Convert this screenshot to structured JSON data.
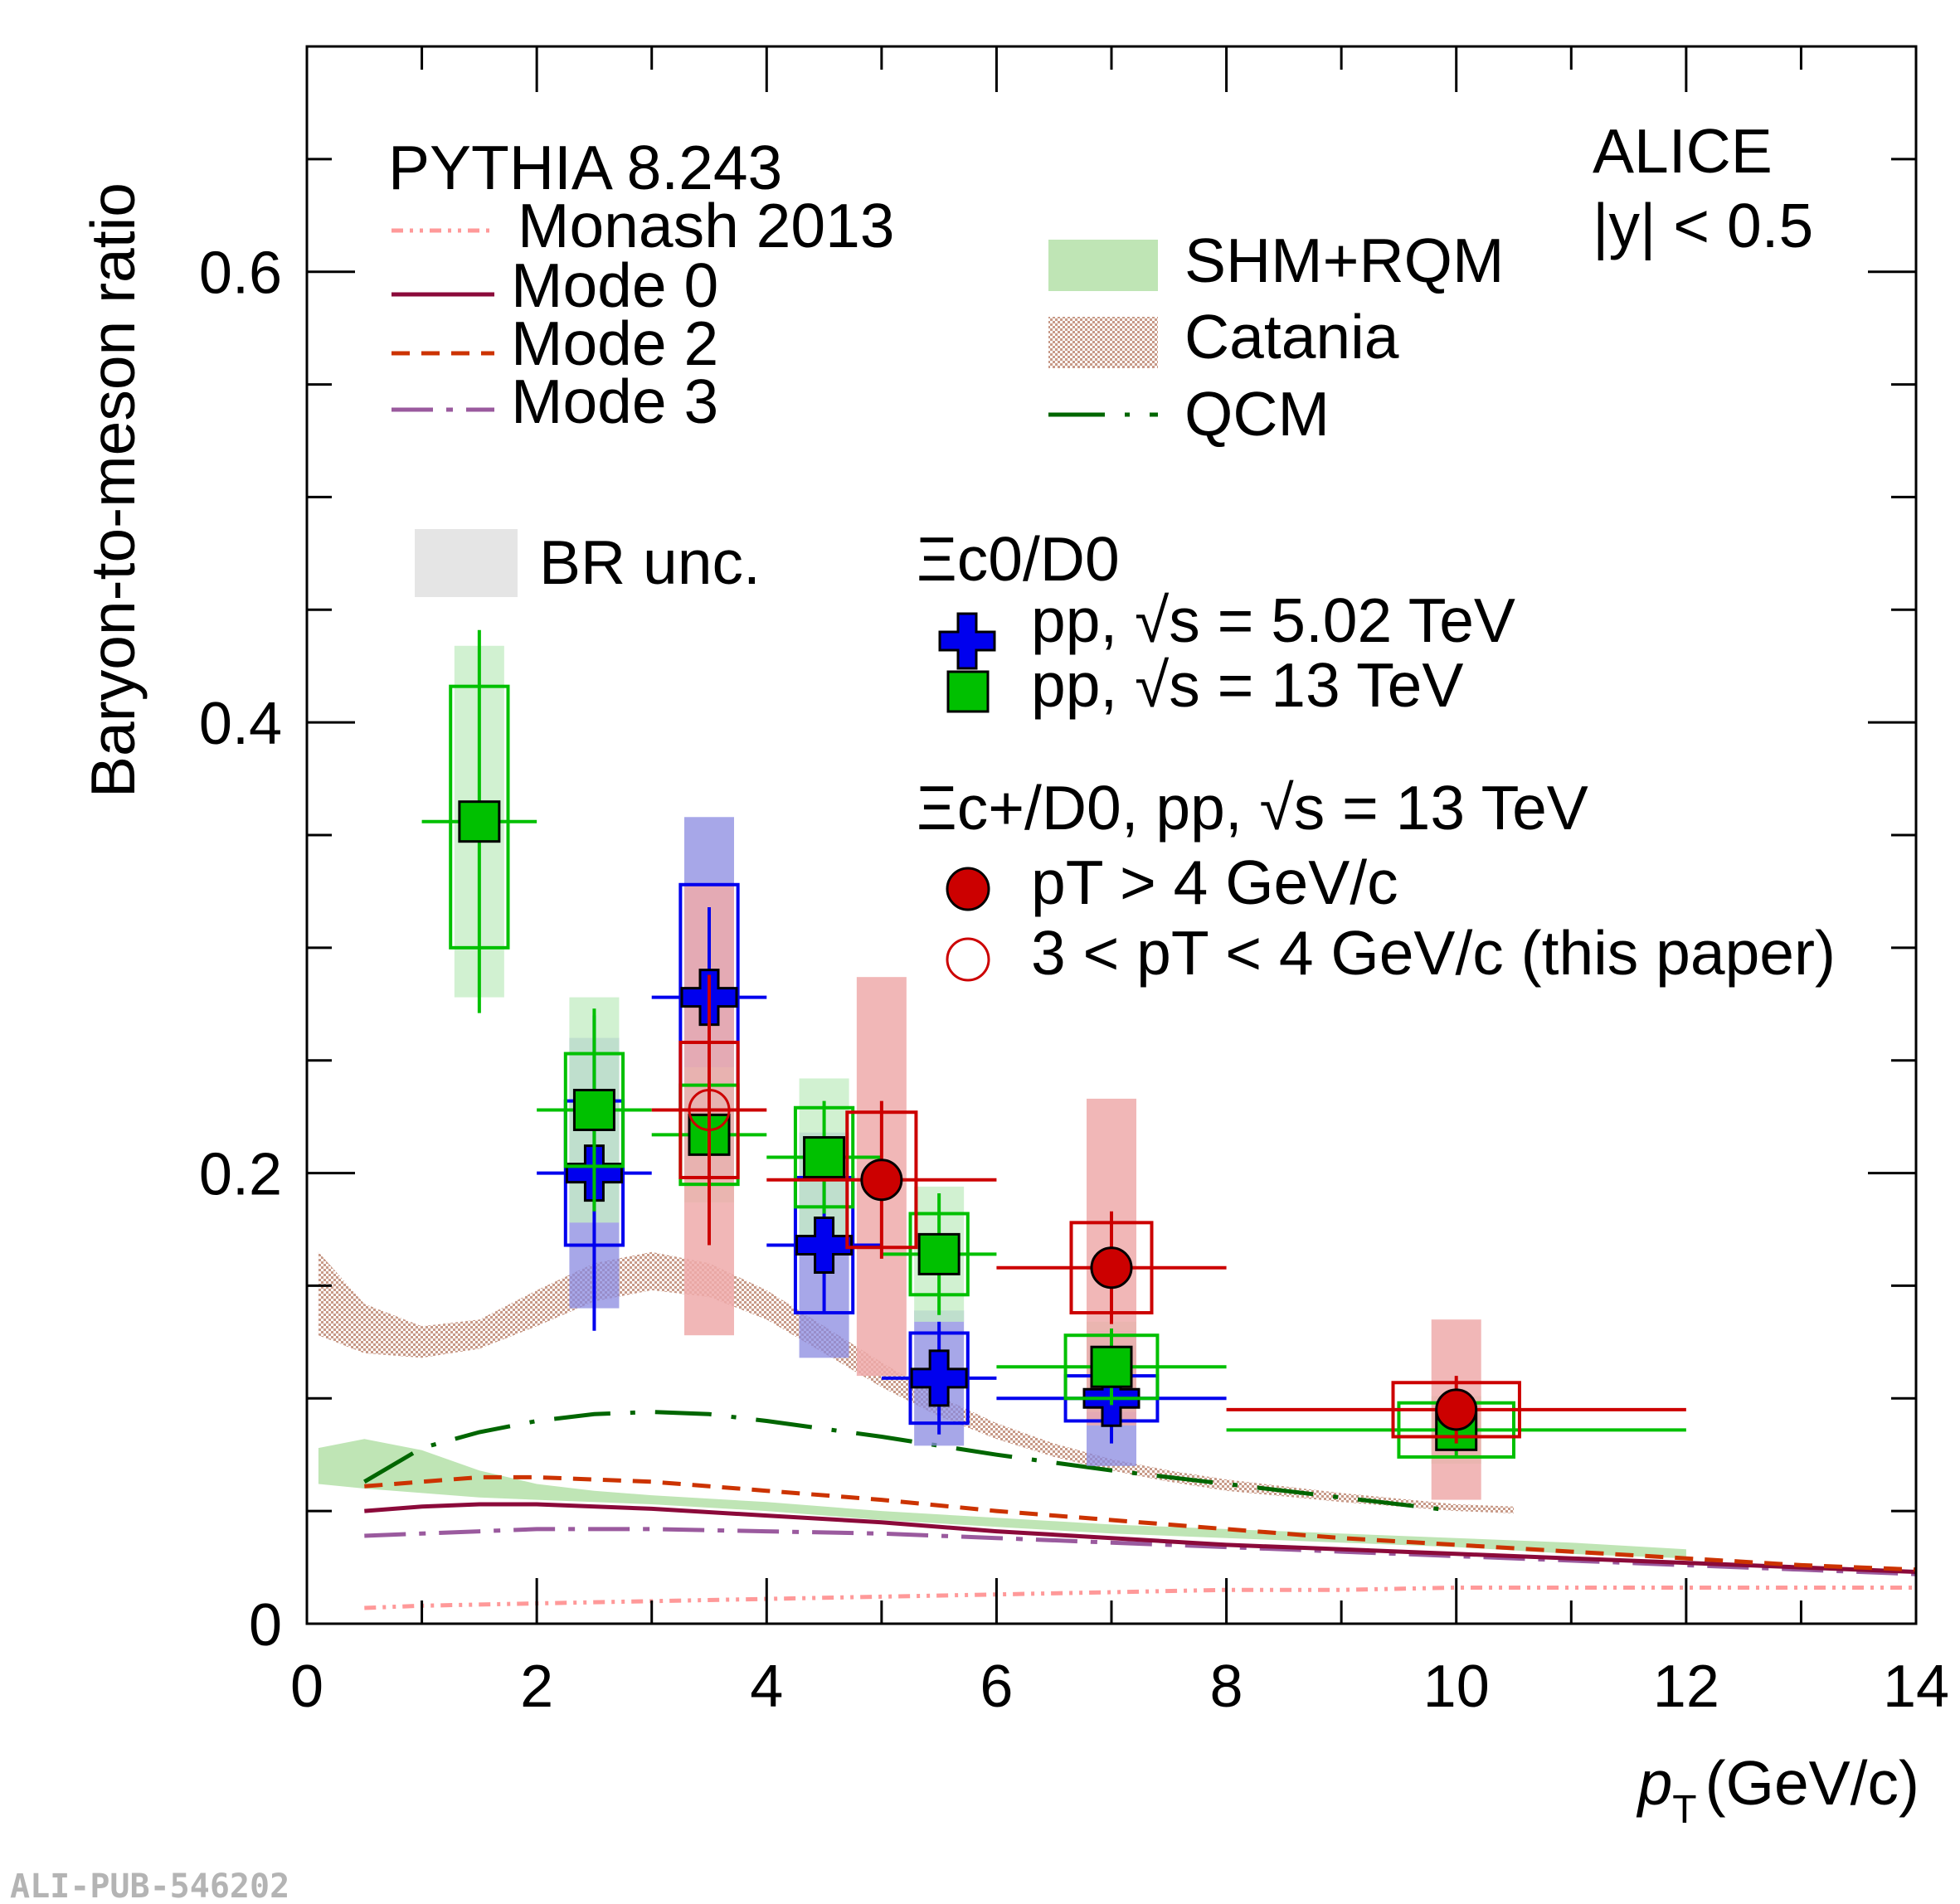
{
  "chart_data": {
    "type": "scatter",
    "xlabel": "p",
    "xlabel_sub": "T",
    "xlabel_unit": "(GeV/c)",
    "ylabel": "Baryon-to-meson ratio",
    "xlim": [
      0,
      14
    ],
    "ylim": [
      0,
      0.7
    ],
    "xticks": [
      0,
      2,
      4,
      6,
      8,
      10,
      12,
      14
    ],
    "xtick_labels": [
      "0",
      "2",
      "4",
      "6",
      "8",
      "10",
      "12",
      "14"
    ],
    "yticks": [
      0,
      0.2,
      0.4,
      0.6
    ],
    "ytick_labels": [
      "0",
      "0.2",
      "0.4",
      "0.6"
    ],
    "experiment": "ALICE",
    "rapidity": "|y| < 0.5",
    "watermark": "ALI-PUB-546202",
    "legend_pythia_title": "PYTHIA 8.243",
    "legend_models": {
      "monash": "Monash 2013",
      "mode0": "Mode 0",
      "mode2": "Mode 2",
      "mode3": "Mode 3",
      "shm": "SHM+RQM",
      "catania": "Catania",
      "qcm": "QCM",
      "br": "BR unc."
    },
    "legend_xic0": {
      "header": "Ξc0/D0",
      "pp502": "pp, √s = 5.02 TeV",
      "pp13": "pp, √s = 13 TeV"
    },
    "legend_xicp": {
      "header": "Ξc+/D0, pp, √s = 13 TeV",
      "high": "pT > 4 GeV/c",
      "low": "3 < pT < 4 GeV/c (this paper)"
    },
    "colors": {
      "blue": "#0000ee",
      "green": "#00c000",
      "red": "#cc0000",
      "mode0": "#8b0a3a",
      "mode2": "#cc3300",
      "mode3": "#9a5a9e",
      "monash": "#ff9999",
      "qcm": "#006600",
      "shm": "#bfe5b5",
      "catania": "#c89a88",
      "br": "#e5e5e5",
      "blue_br": "#8a8ae0",
      "green_br": "#c6eec6",
      "red_br": "#eeaaaa"
    },
    "series": [
      {
        "name": "pp, √s = 5.02 TeV",
        "marker": "cross",
        "color": "blue",
        "points": [
          {
            "x": 2.5,
            "xerr": 0.5,
            "y": 0.2,
            "stat": [
              0.07,
              0.07
            ],
            "syst_w": 0.25,
            "syst": [
              0.032,
              0.032
            ],
            "br": [
              0.06,
              0.06
            ]
          },
          {
            "x": 3.5,
            "xerr": 0.5,
            "y": 0.278,
            "stat": [
              0.04,
              0.04
            ],
            "syst_w": 0.25,
            "syst": [
              0.05,
              0.05
            ],
            "br": [
              0.08,
              0.08
            ]
          },
          {
            "x": 4.5,
            "xerr": 0.5,
            "y": 0.168,
            "stat": [
              0.03,
              0.03
            ],
            "syst_w": 0.25,
            "syst": [
              0.03,
              0.03
            ],
            "br": [
              0.05,
              0.05
            ]
          },
          {
            "x": 5.5,
            "xerr": 0.5,
            "y": 0.109,
            "stat": [
              0.025,
              0.025
            ],
            "syst_w": 0.25,
            "syst": [
              0.02,
              0.02
            ],
            "br": [
              0.03,
              0.03
            ]
          },
          {
            "x": 7.0,
            "xerr": 1.0,
            "y": 0.1,
            "stat": [
              0.02,
              0.02
            ],
            "syst_w": 0.4,
            "syst": [
              0.01,
              0.01
            ],
            "br": [
              0.03,
              0.03
            ]
          }
        ]
      },
      {
        "name": "pp, √s = 13 TeV",
        "marker": "square",
        "color": "green",
        "points": [
          {
            "x": 1.5,
            "xerr": 0.5,
            "y": 0.356,
            "stat": [
              0.085,
              0.085
            ],
            "syst_w": 0.25,
            "syst": [
              0.056,
              0.06
            ],
            "br": [
              0.078,
              0.078
            ]
          },
          {
            "x": 2.5,
            "xerr": 0.5,
            "y": 0.228,
            "stat": [
              0.045,
              0.045
            ],
            "syst_w": 0.25,
            "syst": [
              0.025,
              0.025
            ],
            "br": [
              0.05,
              0.05
            ]
          },
          {
            "x": 3.5,
            "xerr": 0.5,
            "y": 0.217,
            "stat": [
              0.02,
              0.02
            ],
            "syst_w": 0.25,
            "syst": [
              0.022,
              0.022
            ],
            "br": [
              0.03,
              0.03
            ]
          },
          {
            "x": 4.5,
            "xerr": 0.5,
            "y": 0.207,
            "stat": [
              0.025,
              0.025
            ],
            "syst_w": 0.25,
            "syst": [
              0.022,
              0.022
            ],
            "br": [
              0.035,
              0.035
            ]
          },
          {
            "x": 5.5,
            "xerr": 0.5,
            "y": 0.164,
            "stat": [
              0.027,
              0.027
            ],
            "syst_w": 0.25,
            "syst": [
              0.018,
              0.018
            ],
            "br": [
              0.03,
              0.03
            ]
          },
          {
            "x": 7.0,
            "xerr": 1.0,
            "y": 0.114,
            "stat": [
              0.017,
              0.017
            ],
            "syst_w": 0.4,
            "syst": [
              0.014,
              0.014
            ],
            "br": [
              0.02,
              0.02
            ]
          },
          {
            "x": 10.0,
            "xerr": 2.0,
            "y": 0.086,
            "stat": [
              0.012,
              0.012
            ],
            "syst_w": 0.5,
            "syst": [
              0.012,
              0.012
            ],
            "br": [
              0.015,
              0.015
            ]
          }
        ]
      },
      {
        "name": "pT > 4 GeV/c",
        "marker": "circle",
        "color": "red",
        "points": [
          {
            "x": 5.0,
            "xerr": 1.0,
            "y": 0.197,
            "stat": [
              0.035,
              0.035
            ],
            "syst_w": 0.3,
            "syst": [
              0.03,
              0.03
            ],
            "br": [
              0.087,
              0.09
            ]
          },
          {
            "x": 7.0,
            "xerr": 1.0,
            "y": 0.158,
            "stat": [
              0.025,
              0.025
            ],
            "syst_w": 0.35,
            "syst": [
              0.02,
              0.02
            ],
            "br": [
              0.07,
              0.075
            ]
          },
          {
            "x": 10.0,
            "xerr": 2.0,
            "y": 0.095,
            "stat": [
              0.015,
              0.015
            ],
            "syst_w": 0.55,
            "syst": [
              0.012,
              0.012
            ],
            "br": [
              0.04,
              0.04
            ]
          }
        ]
      },
      {
        "name": "3 < pT < 4 GeV/c (this paper)",
        "marker": "open-circle",
        "color": "red",
        "points": [
          {
            "x": 3.5,
            "xerr": 0.5,
            "y": 0.228,
            "stat": [
              0.06,
              0.06
            ],
            "syst_w": 0.25,
            "syst": [
              0.03,
              0.03
            ],
            "br": [
              0.1,
              0.1
            ]
          }
        ]
      }
    ],
    "curves": {
      "shm_band": {
        "x": [
          0.1,
          0.5,
          1.0,
          1.5,
          2,
          2.5,
          3,
          4,
          5,
          6,
          7,
          8,
          9,
          10,
          11,
          12
        ],
        "lo": [
          0.062,
          0.06,
          0.058,
          0.056,
          0.055,
          0.054,
          0.053,
          0.05,
          0.046,
          0.043,
          0.04,
          0.038,
          0.036,
          0.034,
          0.031,
          0.029
        ],
        "hi": [
          0.078,
          0.082,
          0.077,
          0.068,
          0.062,
          0.059,
          0.057,
          0.054,
          0.05,
          0.047,
          0.044,
          0.042,
          0.04,
          0.038,
          0.036,
          0.033
        ]
      },
      "catania_band": {
        "x": [
          0.1,
          0.5,
          1.0,
          1.5,
          2,
          2.5,
          3,
          3.5,
          4,
          4.5,
          5,
          5.5,
          6,
          6.5,
          7,
          7.5,
          8,
          9,
          10,
          10.5
        ],
        "lo": [
          0.128,
          0.12,
          0.118,
          0.122,
          0.132,
          0.143,
          0.148,
          0.145,
          0.135,
          0.12,
          0.105,
          0.092,
          0.082,
          0.074,
          0.068,
          0.063,
          0.059,
          0.054,
          0.05,
          0.049
        ],
        "hi": [
          0.165,
          0.142,
          0.132,
          0.135,
          0.148,
          0.16,
          0.165,
          0.16,
          0.148,
          0.132,
          0.116,
          0.101,
          0.089,
          0.08,
          0.073,
          0.068,
          0.064,
          0.058,
          0.053,
          0.052
        ]
      },
      "qcm": {
        "x": [
          0.5,
          1.0,
          1.5,
          2,
          2.5,
          3,
          3.5,
          4,
          5,
          6,
          7,
          8,
          9,
          10
        ],
        "y": [
          0.063,
          0.078,
          0.085,
          0.09,
          0.093,
          0.094,
          0.093,
          0.09,
          0.083,
          0.075,
          0.068,
          0.062,
          0.056,
          0.05
        ]
      },
      "mode0": {
        "x": [
          0.5,
          1.0,
          1.5,
          2,
          3,
          4,
          5,
          6,
          7,
          8,
          9,
          10,
          11,
          12,
          13,
          14
        ],
        "y": [
          0.05,
          0.052,
          0.053,
          0.053,
          0.051,
          0.048,
          0.045,
          0.041,
          0.038,
          0.035,
          0.033,
          0.031,
          0.029,
          0.027,
          0.025,
          0.023
        ]
      },
      "mode2": {
        "x": [
          0.5,
          1.0,
          1.5,
          2,
          3,
          4,
          5,
          6,
          7,
          8,
          9,
          10,
          11,
          12,
          13,
          14
        ],
        "y": [
          0.061,
          0.063,
          0.065,
          0.065,
          0.063,
          0.059,
          0.055,
          0.05,
          0.046,
          0.042,
          0.038,
          0.035,
          0.032,
          0.029,
          0.026,
          0.024
        ]
      },
      "mode3": {
        "x": [
          0.5,
          1.0,
          1.5,
          2,
          3,
          4,
          5,
          6,
          7,
          8,
          9,
          10,
          11,
          12,
          13,
          14
        ],
        "y": [
          0.039,
          0.04,
          0.041,
          0.042,
          0.042,
          0.041,
          0.04,
          0.038,
          0.036,
          0.034,
          0.032,
          0.03,
          0.028,
          0.026,
          0.024,
          0.022
        ]
      },
      "monash": {
        "x": [
          0.5,
          1,
          2,
          3,
          4,
          5,
          6,
          7,
          8,
          9,
          10,
          11,
          12,
          13,
          14
        ],
        "y": [
          0.007,
          0.008,
          0.009,
          0.01,
          0.011,
          0.012,
          0.013,
          0.014,
          0.015,
          0.015,
          0.016,
          0.016,
          0.016,
          0.016,
          0.016
        ]
      }
    }
  }
}
